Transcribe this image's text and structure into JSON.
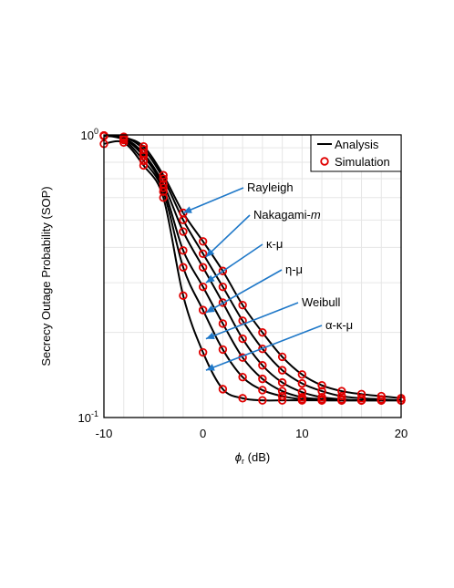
{
  "chart_data": {
    "type": "line",
    "title": "",
    "xlabel": {
      "symbol": "ϕ",
      "sub": "r",
      "rest": " (dB)"
    },
    "ylabel": "Secrecy Outage Probability (SOP)",
    "xlim": [
      -10,
      20
    ],
    "ylim": [
      0.1,
      1
    ],
    "yscale": "log",
    "grid": true,
    "x_ticks": [
      "-10",
      "0",
      "10",
      "20"
    ],
    "y_ticks": [
      {
        "base": "10",
        "exp": "0"
      },
      {
        "base": "10",
        "exp": "-1"
      }
    ],
    "legend": {
      "position": "top-right",
      "entries": [
        {
          "label": "Analysis",
          "marker": "line",
          "color": "#000000"
        },
        {
          "label": "Simulation",
          "marker": "circle",
          "color": "#e00000"
        }
      ]
    },
    "x": [
      -10,
      -8,
      -6,
      -4,
      -2,
      0,
      2,
      4,
      6,
      8,
      10,
      12,
      14,
      16,
      18,
      20
    ],
    "series": [
      {
        "name": "Rayleigh",
        "values": [
          0.99,
          0.98,
          0.91,
          0.72,
          0.53,
          0.42,
          0.33,
          0.25,
          0.2,
          0.164,
          0.142,
          0.13,
          0.124,
          0.121,
          0.119,
          0.117
        ]
      },
      {
        "name": "Nakagami-m",
        "values": [
          0.995,
          0.985,
          0.89,
          0.7,
          0.5,
          0.38,
          0.29,
          0.22,
          0.175,
          0.147,
          0.132,
          0.124,
          0.119,
          0.117,
          0.116,
          0.115
        ]
      },
      {
        "name": "κ-μ",
        "values": [
          0.995,
          0.975,
          0.86,
          0.67,
          0.455,
          0.34,
          0.255,
          0.19,
          0.153,
          0.133,
          0.123,
          0.118,
          0.116,
          0.115,
          0.115,
          0.115
        ]
      },
      {
        "name": "η-μ",
        "values": [
          0.995,
          0.97,
          0.84,
          0.65,
          0.39,
          0.29,
          0.215,
          0.163,
          0.137,
          0.124,
          0.118,
          0.116,
          0.115,
          0.115,
          0.115,
          0.115
        ]
      },
      {
        "name": "Weibull",
        "values": [
          0.995,
          0.96,
          0.81,
          0.63,
          0.34,
          0.24,
          0.174,
          0.139,
          0.125,
          0.119,
          0.116,
          0.115,
          0.115,
          0.115,
          0.115,
          0.115
        ]
      },
      {
        "name": "α-κ-μ",
        "values": [
          0.93,
          0.94,
          0.78,
          0.6,
          0.27,
          0.17,
          0.126,
          0.117,
          0.115,
          0.115,
          0.115,
          0.115,
          0.115,
          0.115,
          0.115,
          0.115
        ]
      }
    ],
    "annotations": [
      {
        "text": "Rayleigh",
        "series": "Rayleigh",
        "arrow_to": [
          -2,
          0.53
        ]
      },
      {
        "text": "Nakagami-",
        "italic_suffix": "m",
        "series": "Nakagami-m",
        "arrow_to": [
          0.3,
          0.37
        ]
      },
      {
        "text": "κ-μ",
        "series": "κ-μ",
        "arrow_to": [
          0.3,
          0.3
        ]
      },
      {
        "text": "η-μ",
        "series": "η-μ",
        "arrow_to": [
          0.3,
          0.235
        ]
      },
      {
        "text": "Weibull",
        "series": "Weibull",
        "arrow_to": [
          0.3,
          0.19
        ]
      },
      {
        "text": "α-κ-μ",
        "series": "α-κ-μ",
        "arrow_to": [
          0.3,
          0.147
        ]
      }
    ],
    "colors": {
      "curve": "#000000",
      "marker": "#e00000",
      "arrow": "#1f78c8",
      "grid": "#e6e6e6"
    }
  }
}
